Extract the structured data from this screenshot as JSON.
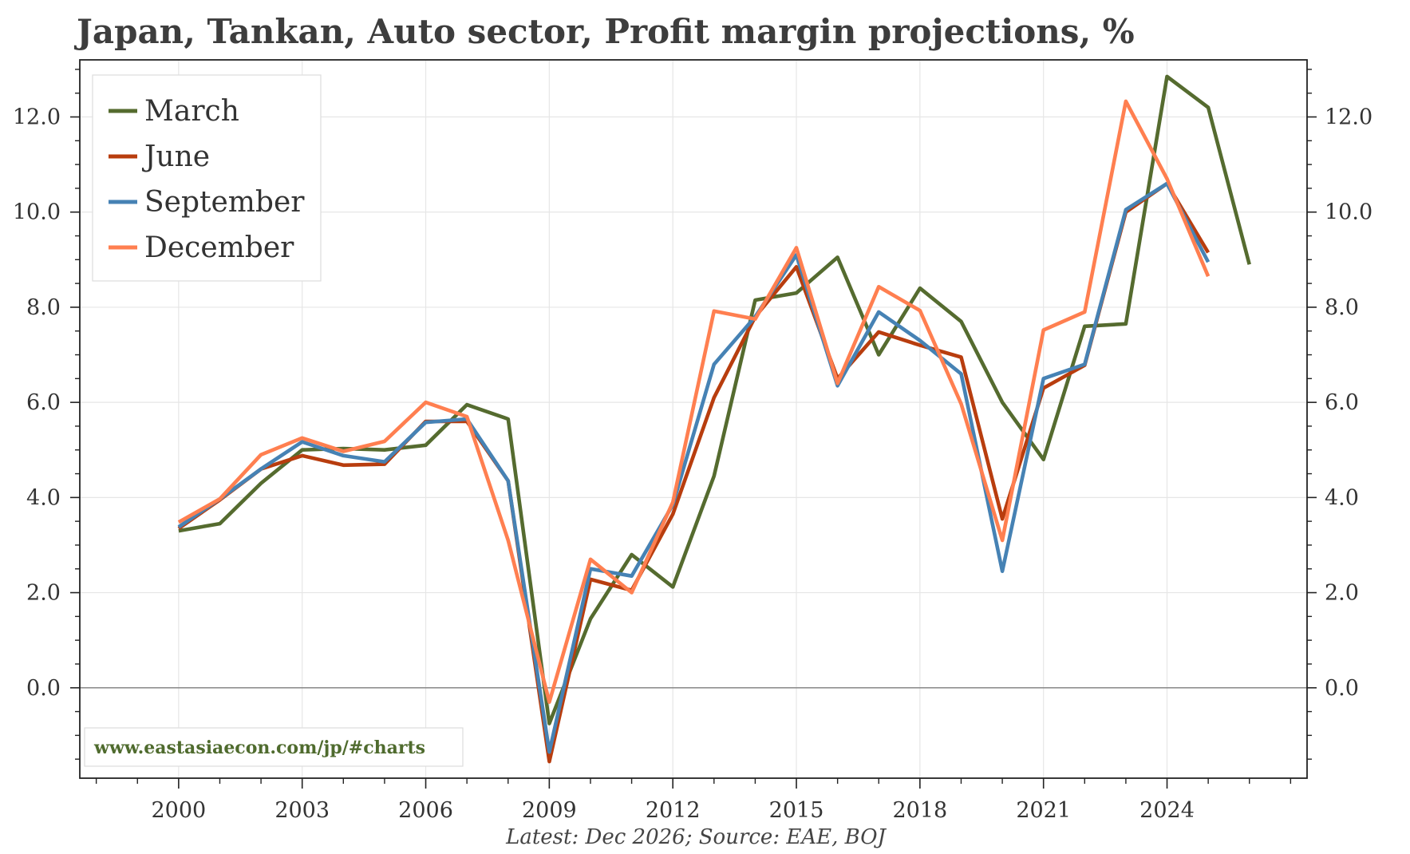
{
  "chart_data": {
    "type": "line",
    "title": "Japan, Tankan, Auto sector, Profit margin projections, %",
    "source": "Latest: Dec 2026; Source: EAE, BOJ",
    "watermark": "www.eastasiaecon.com/jp/#charts",
    "xlabel": "",
    "ylabel": "",
    "xlim": [
      1997.6,
      2027.4
    ],
    "ylim": [
      -1.9,
      13.2
    ],
    "x_ticks": [
      2000,
      2003,
      2006,
      2009,
      2012,
      2015,
      2018,
      2021,
      2024
    ],
    "x_tick_labels": [
      "2000",
      "2003",
      "2006",
      "2009",
      "2012",
      "2015",
      "2018",
      "2021",
      "2024"
    ],
    "y_ticks": [
      0,
      2,
      4,
      6,
      8,
      10,
      12
    ],
    "y_tick_labels": [
      "0.0",
      "2.0",
      "4.0",
      "6.0",
      "8.0",
      "10.0",
      "12.0"
    ],
    "grid": true,
    "legend_position": "top-left",
    "zero_line": true,
    "x": [
      2000,
      2001,
      2002,
      2003,
      2004,
      2005,
      2006,
      2007,
      2008,
      2009,
      2010,
      2011,
      2012,
      2013,
      2014,
      2015,
      2016,
      2017,
      2018,
      2019,
      2020,
      2021,
      2022,
      2023,
      2024,
      2025,
      2026
    ],
    "series": [
      {
        "name": "March",
        "color": "#556b2f",
        "values": [
          3.3,
          3.45,
          4.3,
          5.0,
          5.03,
          5.0,
          5.1,
          5.95,
          5.65,
          -0.75,
          1.45,
          2.8,
          2.12,
          4.45,
          8.15,
          8.3,
          9.05,
          7.0,
          8.4,
          7.7,
          6.0,
          4.8,
          7.6,
          7.65,
          12.85,
          12.2,
          8.9
        ]
      },
      {
        "name": "June",
        "color": "#b83d0e",
        "values": [
          3.35,
          3.95,
          4.6,
          4.88,
          4.68,
          4.7,
          5.6,
          5.6,
          4.35,
          -1.55,
          2.28,
          2.05,
          3.65,
          6.1,
          7.8,
          8.85,
          6.5,
          7.48,
          7.2,
          6.95,
          3.55,
          6.3,
          6.78,
          10.0,
          10.6,
          9.15,
          null
        ]
      },
      {
        "name": "September",
        "color": "#4682b4",
        "values": [
          3.38,
          3.97,
          4.6,
          5.17,
          4.88,
          4.75,
          5.58,
          5.65,
          4.35,
          -1.35,
          2.5,
          2.35,
          3.85,
          6.8,
          7.8,
          9.1,
          6.35,
          7.9,
          7.3,
          6.6,
          2.45,
          6.5,
          6.8,
          10.05,
          10.6,
          8.95,
          null
        ]
      },
      {
        "name": "December",
        "color": "#ff7f50",
        "values": [
          3.48,
          3.97,
          4.9,
          5.25,
          4.97,
          5.18,
          6.0,
          5.7,
          3.1,
          -0.3,
          2.7,
          2.0,
          3.9,
          7.92,
          7.75,
          9.25,
          6.4,
          8.43,
          7.93,
          5.97,
          3.1,
          7.52,
          7.9,
          12.33,
          10.7,
          8.65,
          null
        ]
      }
    ]
  }
}
